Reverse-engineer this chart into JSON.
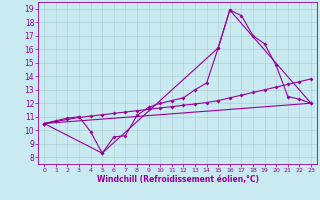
{
  "xlabel": "Windchill (Refroidissement éolien,°C)",
  "bg_color": "#c8eaf0",
  "line_color": "#990099",
  "grid_color": "#aacccc",
  "xlim": [
    -0.5,
    23.5
  ],
  "ylim": [
    7.5,
    19.5
  ],
  "xticks": [
    0,
    1,
    2,
    3,
    4,
    5,
    6,
    7,
    8,
    9,
    10,
    11,
    12,
    13,
    14,
    15,
    16,
    17,
    18,
    19,
    20,
    21,
    22,
    23
  ],
  "yticks": [
    8,
    9,
    10,
    11,
    12,
    13,
    14,
    15,
    16,
    17,
    18,
    19
  ],
  "line1_x": [
    0,
    1,
    2,
    3,
    4,
    5,
    6,
    7,
    8,
    9,
    10,
    11,
    12,
    13,
    14,
    15,
    16,
    17,
    18,
    19,
    20,
    21,
    22,
    23
  ],
  "line1_y": [
    10.5,
    10.7,
    10.9,
    11.0,
    9.9,
    8.3,
    9.5,
    9.6,
    11.1,
    11.7,
    12.0,
    12.2,
    12.4,
    13.0,
    13.5,
    16.1,
    18.9,
    18.5,
    17.0,
    16.4,
    14.8,
    12.5,
    12.3,
    12.0
  ],
  "line2_x": [
    0,
    1,
    2,
    3,
    4,
    5,
    6,
    7,
    8,
    9,
    10,
    11,
    12,
    13,
    14,
    15,
    16,
    17,
    18,
    19,
    20,
    21,
    22,
    23
  ],
  "line2_y": [
    10.5,
    10.65,
    10.8,
    10.95,
    11.05,
    11.15,
    11.25,
    11.35,
    11.45,
    11.55,
    11.65,
    11.75,
    11.85,
    11.95,
    12.05,
    12.2,
    12.4,
    12.6,
    12.8,
    13.0,
    13.2,
    13.4,
    13.6,
    13.8
  ],
  "line3_x": [
    0,
    5,
    15,
    16,
    23
  ],
  "line3_y": [
    10.5,
    8.3,
    16.1,
    18.9,
    12.0
  ],
  "line4_x": [
    0,
    23
  ],
  "line4_y": [
    10.5,
    12.0
  ]
}
